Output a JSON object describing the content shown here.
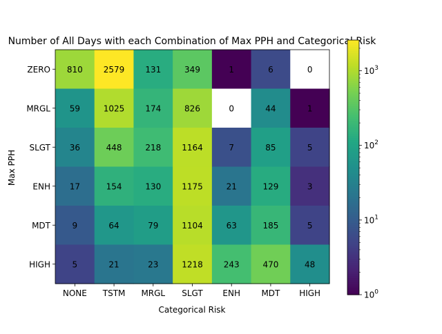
{
  "chart_data": {
    "type": "heatmap",
    "title": "Number of All Days with each Combination of Max PPH and Categorical Risk",
    "xlabel": "Categorical Risk",
    "ylabel": "Max PPH",
    "x_categories": [
      "NONE",
      "TSTM",
      "MRGL",
      "SLGT",
      "ENH",
      "MDT",
      "HIGH"
    ],
    "y_categories": [
      "ZERO",
      "MRGL",
      "SLGT",
      "ENH",
      "MDT",
      "HIGH"
    ],
    "values": [
      [
        810,
        2579,
        131,
        349,
        1,
        6,
        0
      ],
      [
        59,
        1025,
        174,
        826,
        0,
        44,
        1
      ],
      [
        36,
        448,
        218,
        1164,
        7,
        85,
        5
      ],
      [
        17,
        154,
        130,
        1175,
        21,
        129,
        3
      ],
      [
        9,
        64,
        79,
        1104,
        63,
        185,
        5
      ],
      [
        5,
        21,
        23,
        1218,
        243,
        470,
        48
      ]
    ],
    "color_scale": "log",
    "colormap": "viridis",
    "clim": [
      1,
      2579
    ],
    "zero_color": "#ffffff",
    "colorbar": {
      "ticks": [
        1,
        10,
        100,
        1000
      ],
      "tick_labels": [
        {
          "base": "10",
          "exp": "0"
        },
        {
          "base": "10",
          "exp": "1"
        },
        {
          "base": "10",
          "exp": "2"
        },
        {
          "base": "10",
          "exp": "3"
        }
      ]
    }
  }
}
